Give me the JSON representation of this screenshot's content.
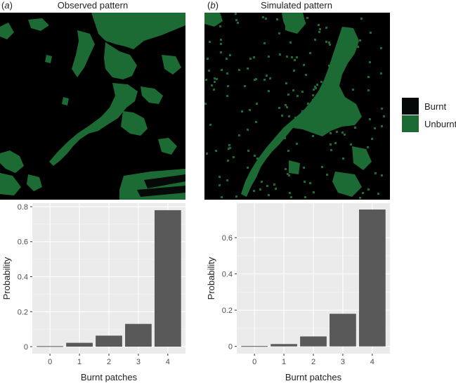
{
  "panels": [
    {
      "label_open": "(",
      "label_letter": "a",
      "label_close": ")",
      "title": "Observed pattern"
    },
    {
      "label_open": "(",
      "label_letter": "b",
      "label_close": ")",
      "title": "Simulated pattern"
    }
  ],
  "legend": {
    "items": [
      {
        "label": "Burnt",
        "color": "#050a08"
      },
      {
        "label": "Unburnt",
        "color": "#1d6b34"
      }
    ]
  },
  "colors": {
    "burnt": "#050a08",
    "unburnt": "#1d6b34",
    "bar": "#595959",
    "panel_bg": "#ebebeb",
    "grid": "#ffffff"
  },
  "chart_data": [
    {
      "type": "bar",
      "categories": [
        "0",
        "1",
        "2",
        "3",
        "4"
      ],
      "values": [
        0.003,
        0.022,
        0.063,
        0.13,
        0.78
      ],
      "xlabel": "Burnt patches",
      "ylabel": "Probability",
      "ylim": [
        -0.04,
        0.82
      ],
      "yticks": [
        0,
        0.2,
        0.4,
        0.6,
        0.8
      ],
      "ytick_labels": [
        "0",
        "0.2",
        "0.4",
        "0.6",
        "0.8"
      ],
      "grid": true
    },
    {
      "type": "bar",
      "categories": [
        "0",
        "1",
        "2",
        "3",
        "4"
      ],
      "values": [
        0.002,
        0.013,
        0.055,
        0.18,
        0.755
      ],
      "xlabel": "Burnt patches",
      "ylabel": "Probability",
      "ylim": [
        -0.04,
        0.79
      ],
      "yticks": [
        0,
        0.2,
        0.4,
        0.6
      ],
      "ytick_labels": [
        "0",
        "0.2",
        "0.4",
        "0.6"
      ],
      "grid": true
    }
  ]
}
